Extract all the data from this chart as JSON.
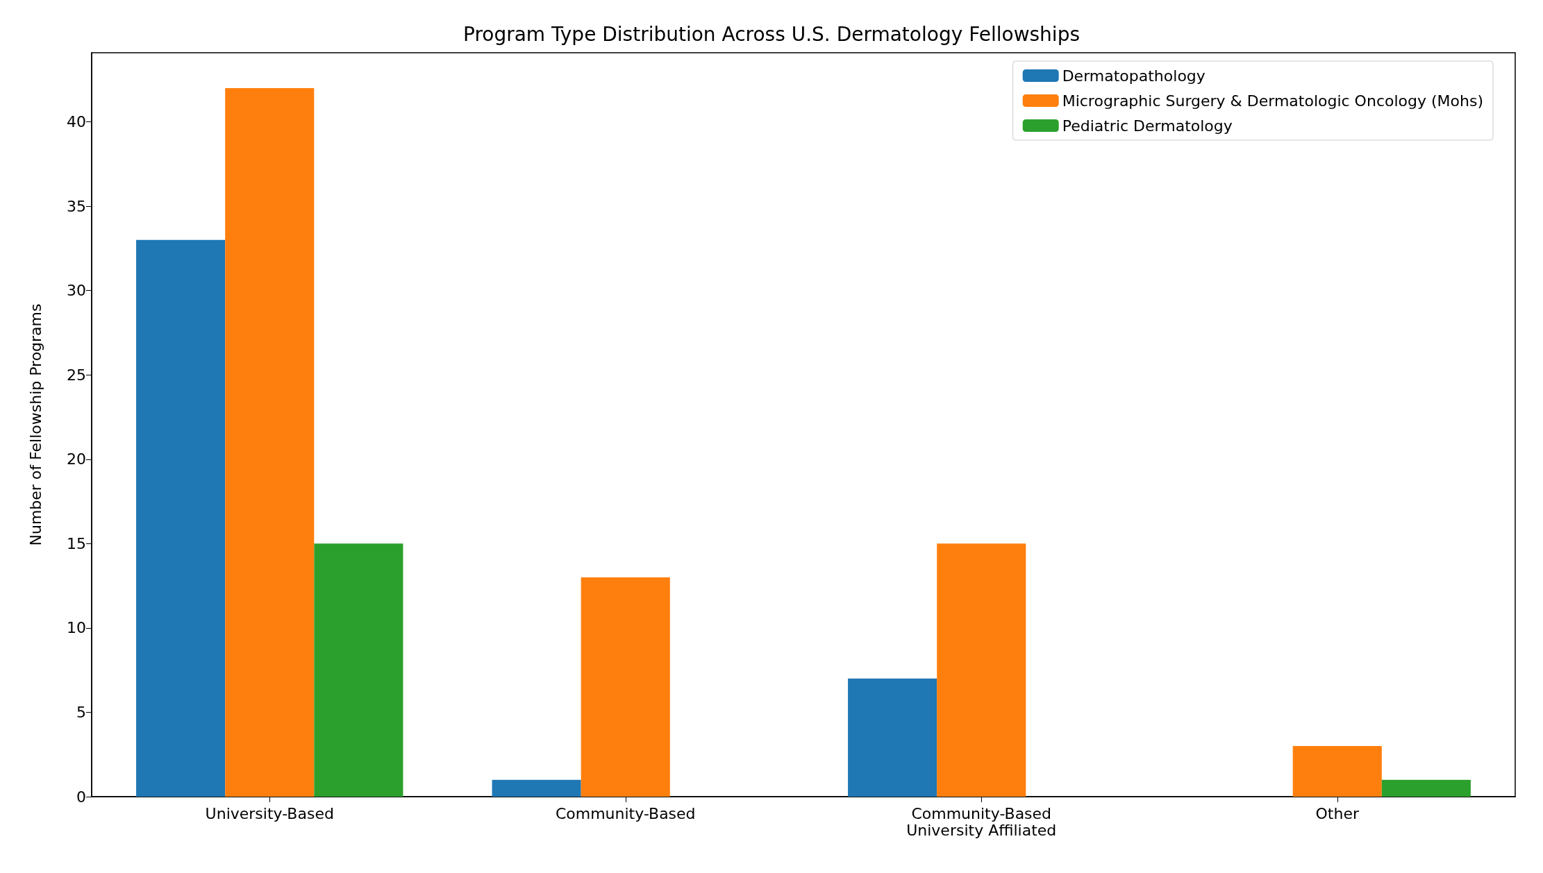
{
  "chart_data": {
    "type": "bar",
    "title": "Program Type Distribution Across U.S. Dermatology Fellowships",
    "ylabel": "Number of Fellowship Programs",
    "categories": [
      "University-Based",
      "Community-Based",
      "Community-Based\nUniversity Affiliated",
      "Other"
    ],
    "series": [
      {
        "name": "Dermatopathology",
        "color": "#1f77b4",
        "values": [
          33,
          1,
          7,
          0
        ]
      },
      {
        "name": "Micrographic Surgery & Dermatologic Oncology (Mohs)",
        "color": "#ff7f0e",
        "values": [
          42,
          13,
          15,
          3
        ]
      },
      {
        "name": "Pediatric Dermatology",
        "color": "#2ca02c",
        "values": [
          15,
          0,
          0,
          1
        ]
      }
    ],
    "ylim": [
      0,
      44.1
    ],
    "yticks": [
      0,
      5,
      10,
      15,
      20,
      25,
      30,
      35,
      40
    ],
    "grid": false,
    "legend": "top right"
  }
}
